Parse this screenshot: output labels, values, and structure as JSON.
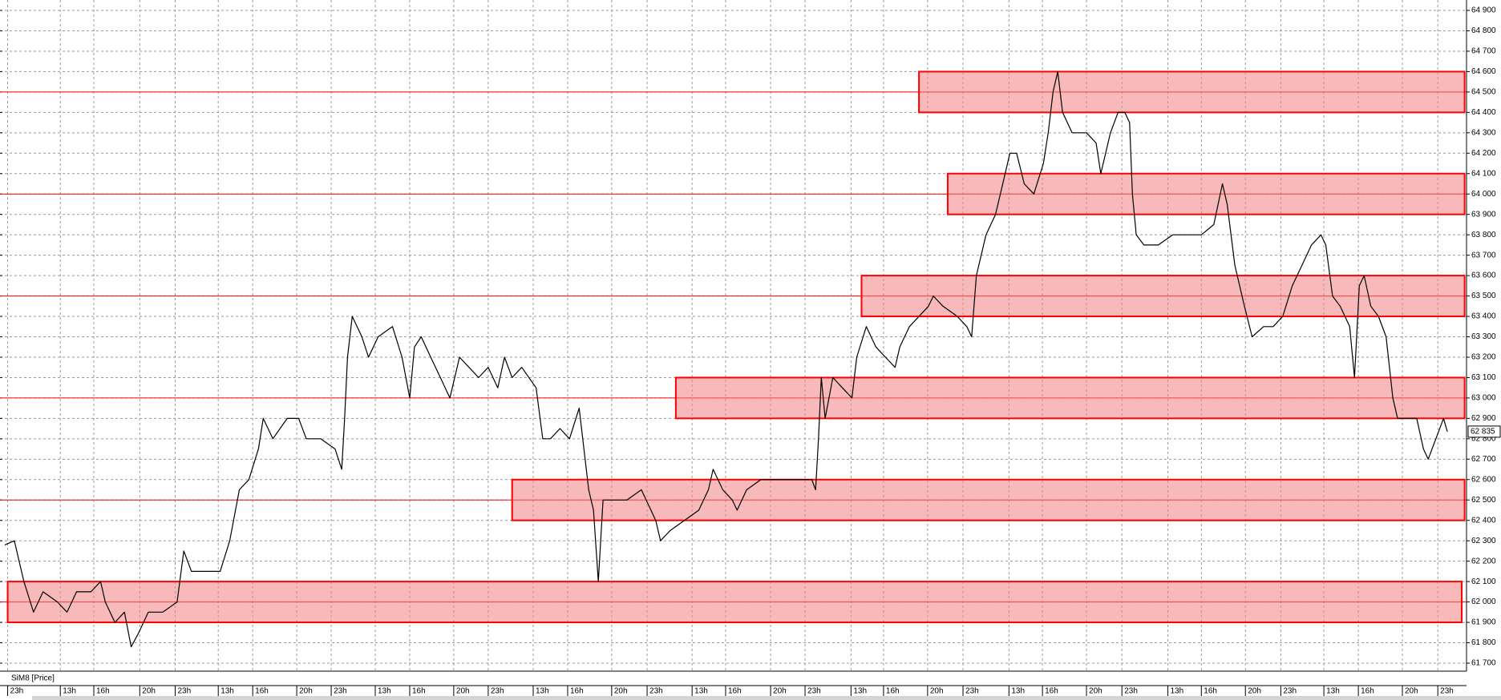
{
  "chart_data": {
    "type": "line",
    "series_label": "SiM8 [Price]",
    "xlim": [
      0,
      1532
    ],
    "ylim": [
      61700,
      64900
    ],
    "yticks": [
      {
        "value": 61700,
        "label": "61 700"
      },
      {
        "value": 61800,
        "label": "61 800"
      },
      {
        "value": 61900,
        "label": "61 900"
      },
      {
        "value": 62000,
        "label": "62 000"
      },
      {
        "value": 62100,
        "label": "62 100"
      },
      {
        "value": 62200,
        "label": "62 200"
      },
      {
        "value": 62300,
        "label": "62 300"
      },
      {
        "value": 62400,
        "label": "62 400"
      },
      {
        "value": 62500,
        "label": "62 500"
      },
      {
        "value": 62600,
        "label": "62 600"
      },
      {
        "value": 62700,
        "label": "62 700"
      },
      {
        "value": 62800,
        "label": "62 800"
      },
      {
        "value": 62900,
        "label": "62 900"
      },
      {
        "value": 63000,
        "label": "63 000"
      },
      {
        "value": 63100,
        "label": "63 100"
      },
      {
        "value": 63200,
        "label": "63 200"
      },
      {
        "value": 63300,
        "label": "63 300"
      },
      {
        "value": 63400,
        "label": "63 400"
      },
      {
        "value": 63500,
        "label": "63 500"
      },
      {
        "value": 63600,
        "label": "63 600"
      },
      {
        "value": 63700,
        "label": "63 700"
      },
      {
        "value": 63800,
        "label": "63 800"
      },
      {
        "value": 63900,
        "label": "63 900"
      },
      {
        "value": 64000,
        "label": "64 000"
      },
      {
        "value": 64100,
        "label": "64 100"
      },
      {
        "value": 64200,
        "label": "64 200"
      },
      {
        "value": 64300,
        "label": "64 300"
      },
      {
        "value": 64400,
        "label": "64 400"
      },
      {
        "value": 64500,
        "label": "64 500"
      },
      {
        "value": 64600,
        "label": "64 600"
      },
      {
        "value": 64700,
        "label": "64 700"
      },
      {
        "value": 64800,
        "label": "64 800"
      },
      {
        "value": 64900,
        "label": "64 900"
      }
    ],
    "xticks": [
      {
        "value": 8,
        "label": "23h"
      },
      {
        "value": 63,
        "label": "13h"
      },
      {
        "value": 98,
        "label": "16h"
      },
      {
        "value": 146,
        "label": "20h"
      },
      {
        "value": 183,
        "label": "23h"
      },
      {
        "value": 228,
        "label": "13h"
      },
      {
        "value": 264,
        "label": "16h"
      },
      {
        "value": 310,
        "label": "20h"
      },
      {
        "value": 346,
        "label": "23h"
      },
      {
        "value": 392,
        "label": "13h"
      },
      {
        "value": 428,
        "label": "16h"
      },
      {
        "value": 474,
        "label": "20h"
      },
      {
        "value": 510,
        "label": "23h"
      },
      {
        "value": 557,
        "label": "13h"
      },
      {
        "value": 593,
        "label": "16h"
      },
      {
        "value": 639,
        "label": "20h"
      },
      {
        "value": 676,
        "label": "23h"
      },
      {
        "value": 723,
        "label": "13h"
      },
      {
        "value": 758,
        "label": "16h"
      },
      {
        "value": 805,
        "label": "20h"
      },
      {
        "value": 841,
        "label": "23h"
      },
      {
        "value": 889,
        "label": "13h"
      },
      {
        "value": 923,
        "label": "16h"
      },
      {
        "value": 969,
        "label": "20h"
      },
      {
        "value": 1006,
        "label": "23h"
      },
      {
        "value": 1054,
        "label": "13h"
      },
      {
        "value": 1089,
        "label": "16h"
      },
      {
        "value": 1135,
        "label": "20h"
      },
      {
        "value": 1172,
        "label": "23h"
      },
      {
        "value": 1220,
        "label": "13h"
      },
      {
        "value": 1255,
        "label": "16h"
      },
      {
        "value": 1301,
        "label": "20h"
      },
      {
        "value": 1338,
        "label": "23h"
      },
      {
        "value": 1383,
        "label": "13h"
      },
      {
        "value": 1419,
        "label": "16h"
      },
      {
        "value": 1465,
        "label": "20h"
      },
      {
        "value": 1502,
        "label": "23h"
      }
    ],
    "grid": true,
    "x": [
      5,
      15,
      25,
      35,
      45,
      60,
      70,
      80,
      95,
      105,
      110,
      120,
      130,
      137,
      145,
      155,
      170,
      185,
      192,
      200,
      215,
      230,
      240,
      250,
      260,
      270,
      275,
      285,
      300,
      312,
      320,
      335,
      350,
      357,
      360,
      363,
      368,
      378,
      385,
      395,
      410,
      420,
      428,
      433,
      440,
      450,
      460,
      470,
      480,
      490,
      500,
      510,
      520,
      527,
      535,
      545,
      560,
      567,
      575,
      585,
      595,
      605,
      615,
      620,
      625,
      630,
      640,
      655,
      670,
      685,
      690,
      700,
      715,
      730,
      740,
      745,
      755,
      765,
      770,
      780,
      795,
      810,
      830,
      848,
      852,
      855,
      858,
      862,
      870,
      880,
      890,
      895,
      905,
      915,
      925,
      935,
      940,
      950,
      960,
      970,
      975,
      985,
      1000,
      1010,
      1015,
      1020,
      1030,
      1040,
      1050,
      1055,
      1062,
      1070,
      1080,
      1090,
      1095,
      1100,
      1105,
      1110,
      1120,
      1135,
      1145,
      1150,
      1155,
      1160,
      1168,
      1175,
      1180,
      1183,
      1187,
      1195,
      1210,
      1225,
      1240,
      1255,
      1268,
      1277,
      1282,
      1290,
      1300,
      1308,
      1320,
      1330,
      1340,
      1350,
      1360,
      1370,
      1380,
      1385,
      1392,
      1400,
      1410,
      1415,
      1420,
      1425,
      1432,
      1440,
      1448,
      1455,
      1460,
      1470,
      1480,
      1487,
      1492,
      1500,
      1508,
      1512
    ],
    "series": [
      {
        "color": "#000000",
        "values": [
          62280,
          62300,
          62100,
          61950,
          62050,
          62000,
          61950,
          62050,
          62050,
          62100,
          62000,
          61900,
          61950,
          61780,
          61850,
          61950,
          61950,
          62000,
          62250,
          62150,
          62150,
          62150,
          62300,
          62550,
          62600,
          62750,
          62900,
          62800,
          62900,
          62900,
          62800,
          62800,
          62750,
          62650,
          62900,
          63200,
          63400,
          63300,
          63200,
          63300,
          63350,
          63200,
          63000,
          63250,
          63300,
          63200,
          63100,
          63000,
          63200,
          63150,
          63100,
          63150,
          63050,
          63200,
          63100,
          63150,
          63050,
          62800,
          62800,
          62850,
          62800,
          62950,
          62550,
          62450,
          62100,
          62500,
          62500,
          62500,
          62550,
          62400,
          62300,
          62350,
          62400,
          62450,
          62550,
          62650,
          62550,
          62500,
          62450,
          62550,
          62600,
          62600,
          62600,
          62600,
          62550,
          62800,
          63100,
          62900,
          63100,
          63050,
          63000,
          63200,
          63350,
          63250,
          63200,
          63150,
          63250,
          63350,
          63400,
          63450,
          63500,
          63450,
          63400,
          63350,
          63300,
          63600,
          63800,
          63900,
          64100,
          64200,
          64200,
          64050,
          64000,
          64150,
          64300,
          64500,
          64600,
          64400,
          64300,
          64300,
          64250,
          64100,
          64200,
          64300,
          64400,
          64400,
          64350,
          64000,
          63800,
          63750,
          63750,
          63800,
          63800,
          63800,
          63850,
          64050,
          63950,
          63650,
          63450,
          63300,
          63350,
          63350,
          63400,
          63550,
          63650,
          63750,
          63800,
          63750,
          63500,
          63450,
          63350,
          63100,
          63550,
          63600,
          63450,
          63400,
          63300,
          63000,
          62900,
          62900,
          62900,
          62750,
          62700,
          62800,
          62900,
          62835
        ]
      }
    ],
    "zones": [
      {
        "from": 64400,
        "to": 64600,
        "start": 960,
        "end": 1530
      },
      {
        "from": 63900,
        "to": 64100,
        "start": 990,
        "end": 1530
      },
      {
        "from": 63400,
        "to": 63600,
        "start": 900,
        "end": 1530
      },
      {
        "from": 62900,
        "to": 63100,
        "start": 706,
        "end": 1530
      },
      {
        "from": 62400,
        "to": 62600,
        "start": 535,
        "end": 1530
      },
      {
        "from": 61900,
        "to": 62100,
        "start": 8,
        "end": 1527
      }
    ],
    "zone_color": "#f08080",
    "levels": [
      64500,
      64000,
      63500,
      63000,
      62500,
      62000
    ],
    "level_color": "#ff0000",
    "last_price": {
      "value": 62835,
      "label": "62 835"
    }
  }
}
